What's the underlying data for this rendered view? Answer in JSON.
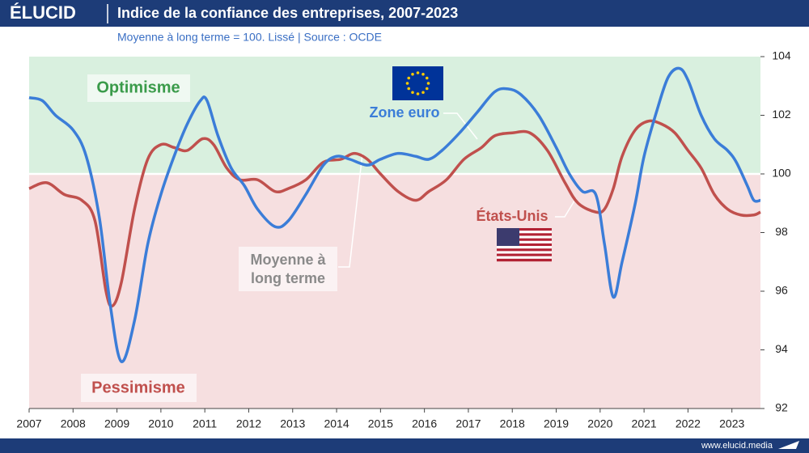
{
  "chart_data": {
    "type": "line",
    "brand": "ÉLUCID",
    "title": "Indice de la confiance des entreprises, 2007-2023",
    "subtitle": "Moyenne à long terme = 100. Lissé  |  Source : OCDE",
    "footer": "www.elucid.media",
    "xlim": [
      2007,
      2023.65
    ],
    "xticks": [
      2007,
      2008,
      2009,
      2010,
      2011,
      2012,
      2013,
      2014,
      2015,
      2016,
      2017,
      2018,
      2019,
      2020,
      2021,
      2022,
      2023
    ],
    "ylim": [
      92,
      104
    ],
    "yticks": [
      92,
      94,
      96,
      98,
      100,
      102,
      104
    ],
    "threshold": 100,
    "zone_colors": {
      "above": "#d9f0df",
      "below": "#f6dfe0"
    },
    "annotations": [
      {
        "text": "Optimisme",
        "color": "#3a9b4a"
      },
      {
        "text": "Pessimisme",
        "color": "#c0504d"
      },
      {
        "lines": [
          "Moyenne à",
          "long terme"
        ],
        "color": "#8a8a8a"
      }
    ],
    "series": [
      {
        "name": "Zone euro",
        "color": "#3b7dd8",
        "x": [
          2007.0,
          2007.3,
          2007.6,
          2008.0,
          2008.3,
          2008.6,
          2008.85,
          2009.1,
          2009.4,
          2009.7,
          2010.0,
          2010.3,
          2010.6,
          2010.9,
          2011.05,
          2011.3,
          2011.6,
          2011.9,
          2012.2,
          2012.6,
          2012.9,
          2013.3,
          2013.7,
          2014.0,
          2014.3,
          2014.7,
          2015.0,
          2015.4,
          2015.8,
          2016.1,
          2016.4,
          2016.8,
          2017.2,
          2017.6,
          2017.9,
          2018.2,
          2018.6,
          2019.0,
          2019.3,
          2019.6,
          2019.9,
          2020.1,
          2020.3,
          2020.5,
          2020.8,
          2021.0,
          2021.3,
          2021.55,
          2021.8,
          2022.0,
          2022.3,
          2022.6,
          2022.9,
          2023.1,
          2023.35,
          2023.5,
          2023.65
        ],
        "values": [
          102.6,
          102.5,
          102.0,
          101.5,
          100.6,
          98.5,
          95.5,
          93.6,
          95.0,
          97.6,
          99.3,
          100.6,
          101.7,
          102.5,
          102.5,
          101.3,
          100.2,
          99.6,
          98.8,
          98.2,
          98.4,
          99.3,
          100.3,
          100.6,
          100.5,
          100.3,
          100.5,
          100.7,
          100.6,
          100.5,
          100.8,
          101.4,
          102.1,
          102.8,
          102.9,
          102.7,
          102.0,
          100.9,
          100.0,
          99.4,
          99.3,
          97.6,
          95.8,
          97.0,
          99.0,
          100.6,
          102.2,
          103.3,
          103.6,
          103.2,
          102.0,
          101.2,
          100.8,
          100.4,
          99.6,
          99.1,
          99.1
        ]
      },
      {
        "name": "États-Unis",
        "color": "#c0504d",
        "x": [
          2007.0,
          2007.4,
          2007.8,
          2008.2,
          2008.5,
          2008.75,
          2008.9,
          2009.1,
          2009.4,
          2009.7,
          2010.0,
          2010.3,
          2010.6,
          2010.95,
          2011.2,
          2011.5,
          2011.8,
          2012.2,
          2012.6,
          2012.9,
          2013.3,
          2013.7,
          2014.1,
          2014.4,
          2014.7,
          2015.0,
          2015.4,
          2015.8,
          2016.1,
          2016.5,
          2016.9,
          2017.3,
          2017.6,
          2018.0,
          2018.4,
          2018.8,
          2019.2,
          2019.5,
          2019.9,
          2020.1,
          2020.3,
          2020.5,
          2020.8,
          2021.1,
          2021.4,
          2021.7,
          2022.0,
          2022.3,
          2022.6,
          2022.9,
          2023.2,
          2023.5,
          2023.65
        ],
        "values": [
          99.5,
          99.7,
          99.3,
          99.1,
          98.4,
          96.0,
          95.5,
          96.3,
          98.8,
          100.5,
          101.0,
          100.9,
          100.8,
          101.2,
          101.0,
          100.2,
          99.8,
          99.8,
          99.4,
          99.5,
          99.8,
          100.4,
          100.5,
          100.7,
          100.5,
          100.0,
          99.4,
          99.1,
          99.4,
          99.8,
          100.5,
          100.9,
          101.3,
          101.4,
          101.4,
          100.8,
          99.7,
          99.0,
          98.7,
          98.8,
          99.5,
          100.6,
          101.5,
          101.8,
          101.7,
          101.4,
          100.8,
          100.2,
          99.3,
          98.8,
          98.6,
          98.6,
          98.7
        ]
      }
    ]
  }
}
